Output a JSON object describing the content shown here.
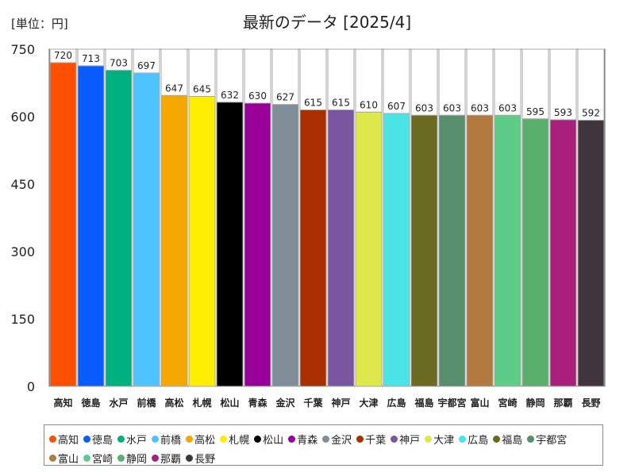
{
  "chart_data": {
    "type": "bar",
    "title": "最新のデータ [2025/4]",
    "unit_label": "[単位：円]",
    "xlabel": "",
    "ylabel": "",
    "ylim": [
      0,
      750
    ],
    "yticks": [
      0,
      150,
      300,
      450,
      600,
      750
    ],
    "grid": false,
    "legend_position": "bottom",
    "categories": [
      "高知",
      "徳島",
      "水戸",
      "前橋",
      "高松",
      "札幌",
      "松山",
      "青森",
      "金沢",
      "千葉",
      "神戸",
      "大津",
      "広島",
      "福島",
      "宇都宮",
      "富山",
      "宮崎",
      "静岡",
      "那覇",
      "長野"
    ],
    "values": [
      720,
      713,
      703,
      697,
      647,
      645,
      632,
      630,
      627,
      615,
      615,
      610,
      607,
      603,
      603,
      603,
      603,
      595,
      593,
      592
    ],
    "colors": [
      "#ff4f00",
      "#0a5cff",
      "#00b080",
      "#4fc3ff",
      "#f5a800",
      "#ffee00",
      "#000000",
      "#990099",
      "#7f8e99",
      "#a83000",
      "#7a55a0",
      "#dde84a",
      "#4ae3e6",
      "#6b6a22",
      "#578e6e",
      "#b37a40",
      "#5dcc86",
      "#5aaf6c",
      "#a8207a",
      "#40353a"
    ]
  }
}
